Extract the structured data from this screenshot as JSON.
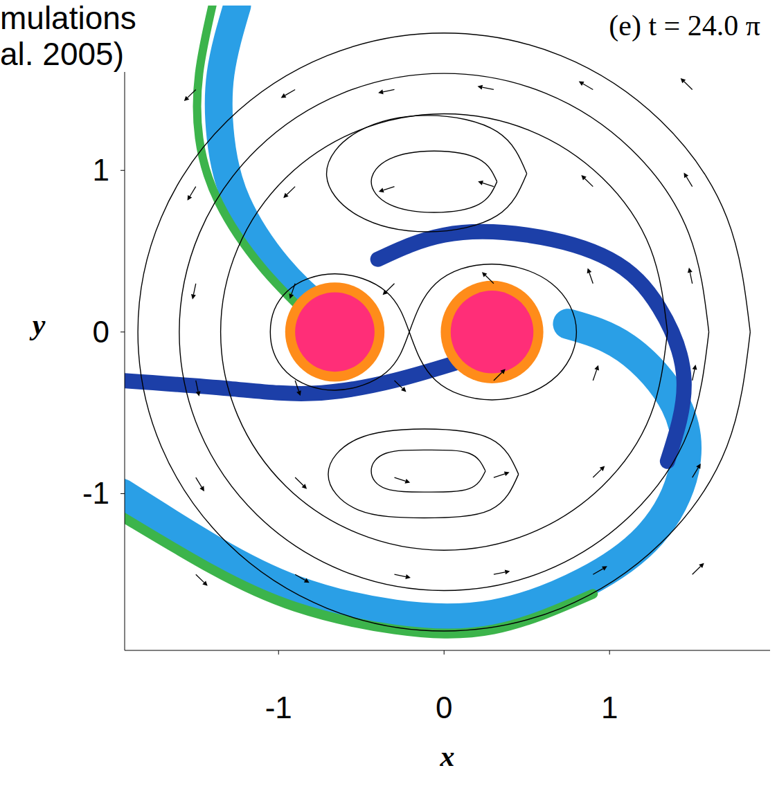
{
  "chart_data": {
    "type": "vector_field",
    "title": "(e) t = 24.0 π",
    "annotations": [
      "mulations",
      "al. 2005)"
    ],
    "x_label": "x",
    "y_label": "y",
    "xlim": [
      -1.93,
      1.97
    ],
    "ylim": [
      -1.97,
      2.02
    ],
    "xticks": [
      -1,
      0,
      1
    ],
    "yticks": [
      -1,
      0,
      1
    ],
    "grid": false,
    "density_features": [
      {
        "color": "#2a9fe6",
        "x": [
          0.75,
          1.1,
          1.4,
          1.45,
          1.25,
          0.85,
          0.3,
          -0.3,
          -0.9,
          -1.4,
          -1.95
        ],
        "y": [
          0.05,
          -0.1,
          -0.45,
          -0.85,
          -1.25,
          -1.55,
          -1.75,
          -1.75,
          -1.6,
          -1.35,
          -1.0
        ]
      },
      {
        "color": "#3cb44b",
        "x": [
          0.9,
          0.3,
          -0.3,
          -0.9,
          -1.4,
          -1.95
        ],
        "y": [
          -1.62,
          -1.84,
          -1.84,
          -1.7,
          -1.47,
          -1.14
        ]
      },
      {
        "color": "#2a9fe6",
        "x": [
          -0.75,
          -1.0,
          -1.25,
          -1.35,
          -1.35,
          -1.25
        ],
        "y": [
          0.15,
          0.4,
          0.8,
          1.2,
          1.6,
          2.02
        ]
      },
      {
        "color": "#3cb44b",
        "x": [
          -0.82,
          -1.1,
          -1.36,
          -1.48,
          -1.48,
          -1.4
        ],
        "y": [
          0.1,
          0.4,
          0.8,
          1.2,
          1.6,
          2.02
        ]
      },
      {
        "color": "#1c3fa8",
        "x": [
          -0.4,
          0.0,
          0.5,
          1.0,
          1.3,
          1.45,
          1.35
        ],
        "y": [
          0.45,
          0.6,
          0.6,
          0.45,
          0.15,
          -0.3,
          -0.8
        ]
      },
      {
        "color": "#1c3fa8",
        "x": [
          -1.95,
          -1.3,
          -0.8,
          -0.3,
          0.2
        ],
        "y": [
          -0.3,
          -0.35,
          -0.38,
          -0.3,
          -0.15
        ]
      }
    ],
    "stars": [
      {
        "x": -0.66,
        "y": 0.0,
        "r": 0.3,
        "color": "#ff8c1a"
      },
      {
        "x": 0.29,
        "y": 0.0,
        "r": 0.31,
        "color": "#ff8c1a"
      },
      {
        "x": -0.66,
        "y": 0.0,
        "r": 0.24,
        "color": "#ff2e78"
      },
      {
        "x": 0.29,
        "y": 0.0,
        "r": 0.25,
        "color": "#ff2e78"
      }
    ],
    "contours": [
      {
        "color": "#000000",
        "x": [
          -0.21,
          -0.35,
          -0.66,
          -0.95,
          -1.05,
          -0.95,
          -0.66,
          -0.35,
          -0.21,
          -0.05,
          0.29,
          0.65,
          0.8,
          0.65,
          0.29,
          -0.05,
          -0.21
        ],
        "y": [
          0,
          0.25,
          0.36,
          0.25,
          0,
          -0.25,
          -0.36,
          -0.25,
          0,
          0.3,
          0.42,
          0.3,
          0,
          -0.3,
          -0.42,
          -0.3,
          0
        ]
      },
      {
        "color": "#000000",
        "x": [
          0.32,
          0.21,
          -0.06,
          -0.33,
          -0.44,
          -0.33,
          -0.06,
          0.21,
          0.32
        ],
        "y": [
          0.93,
          1.07,
          1.12,
          1.07,
          0.93,
          0.79,
          0.74,
          0.79,
          0.93
        ]
      },
      {
        "color": "#000000",
        "x": [
          0.25,
          0.15,
          -0.1,
          -0.35,
          -0.44,
          -0.35,
          -0.1,
          0.15,
          0.25
        ],
        "y": [
          -0.86,
          -0.75,
          -0.73,
          -0.75,
          -0.86,
          -0.97,
          -0.99,
          -0.97,
          -0.86
        ]
      },
      {
        "color": "#000000",
        "x": [
          0.5,
          0.32,
          -0.1,
          -0.52,
          -0.71,
          -0.52,
          -0.1,
          0.32,
          0.5
        ],
        "y": [
          0.98,
          1.24,
          1.34,
          1.24,
          0.98,
          0.72,
          0.62,
          0.72,
          0.98
        ]
      },
      {
        "color": "#000000",
        "x": [
          0.45,
          0.28,
          -0.12,
          -0.52,
          -0.7,
          -0.52,
          -0.12,
          0.28,
          0.45
        ],
        "y": [
          -0.88,
          -0.66,
          -0.6,
          -0.66,
          -0.88,
          -1.1,
          -1.15,
          -1.1,
          -0.88
        ]
      },
      {
        "color": "#000000",
        "x": [
          1.35,
          1.247,
          0.955,
          0.517,
          0,
          -0.517,
          -0.955,
          -1.247,
          -1.35,
          -1.247,
          -0.955,
          -0.517,
          0,
          0.517,
          0.955,
          1.247,
          1.35
        ],
        "y": [
          0,
          0.517,
          0.955,
          1.247,
          1.35,
          1.247,
          0.955,
          0.517,
          0,
          -0.517,
          -0.955,
          -1.247,
          -1.35,
          -1.247,
          -0.955,
          -0.517,
          0
        ]
      },
      {
        "color": "#000000",
        "x": [
          1.6,
          1.478,
          1.131,
          0.612,
          0,
          -0.612,
          -1.131,
          -1.478,
          -1.6,
          -1.478,
          -1.131,
          -0.612,
          0,
          0.612,
          1.131,
          1.478,
          1.6
        ],
        "y": [
          0,
          0.612,
          1.131,
          1.478,
          1.6,
          1.478,
          1.131,
          0.612,
          0,
          -0.612,
          -1.131,
          -1.478,
          -1.6,
          -1.478,
          -1.131,
          -0.612,
          0
        ]
      },
      {
        "color": "#000000",
        "x": [
          1.85,
          1.709,
          1.308,
          0.708,
          0,
          -0.708,
          -1.308,
          -1.709,
          -1.85,
          -1.709,
          -1.308,
          -0.708,
          0,
          0.708,
          1.308,
          1.709,
          1.85
        ],
        "y": [
          0,
          0.708,
          1.308,
          1.709,
          1.85,
          1.709,
          1.308,
          0.708,
          0,
          -0.708,
          -1.308,
          -1.709,
          -1.85,
          -1.709,
          -1.308,
          -0.708,
          0
        ]
      }
    ],
    "vector_color": "#000000",
    "vectors": [
      {
        "x": -1.5,
        "y": 1.5,
        "u": -0.071,
        "v": -0.071
      },
      {
        "x": -0.9,
        "y": 1.5,
        "u": -0.086,
        "v": -0.051
      },
      {
        "x": -0.3,
        "y": 1.5,
        "u": -0.098,
        "v": -0.02
      },
      {
        "x": 0.3,
        "y": 1.5,
        "u": -0.098,
        "v": 0.02
      },
      {
        "x": 0.9,
        "y": 1.5,
        "u": -0.086,
        "v": 0.051
      },
      {
        "x": 1.5,
        "y": 1.5,
        "u": -0.071,
        "v": 0.071
      },
      {
        "x": -1.5,
        "y": 0.9,
        "u": -0.051,
        "v": -0.086
      },
      {
        "x": -0.9,
        "y": 0.9,
        "u": -0.071,
        "v": -0.071
      },
      {
        "x": -0.3,
        "y": 0.9,
        "u": -0.095,
        "v": -0.032
      },
      {
        "x": 0.3,
        "y": 0.9,
        "u": -0.095,
        "v": 0.032
      },
      {
        "x": 0.9,
        "y": 0.9,
        "u": -0.071,
        "v": 0.071
      },
      {
        "x": 1.5,
        "y": 0.9,
        "u": -0.051,
        "v": 0.086
      },
      {
        "x": -1.5,
        "y": 0.3,
        "u": -0.02,
        "v": -0.098
      },
      {
        "x": -0.9,
        "y": 0.3,
        "u": -0.032,
        "v": -0.095
      },
      {
        "x": -0.3,
        "y": 0.3,
        "u": -0.071,
        "v": -0.071
      },
      {
        "x": 0.3,
        "y": 0.3,
        "u": -0.071,
        "v": 0.071
      },
      {
        "x": 0.9,
        "y": 0.3,
        "u": -0.032,
        "v": 0.095
      },
      {
        "x": 1.5,
        "y": 0.3,
        "u": -0.02,
        "v": 0.098
      },
      {
        "x": -1.5,
        "y": -0.3,
        "u": 0.02,
        "v": -0.098
      },
      {
        "x": -0.9,
        "y": -0.3,
        "u": 0.032,
        "v": -0.095
      },
      {
        "x": -0.3,
        "y": -0.3,
        "u": 0.071,
        "v": -0.071
      },
      {
        "x": 0.3,
        "y": -0.3,
        "u": 0.071,
        "v": 0.071
      },
      {
        "x": 0.9,
        "y": -0.3,
        "u": 0.032,
        "v": 0.095
      },
      {
        "x": 1.5,
        "y": -0.3,
        "u": 0.02,
        "v": 0.098
      },
      {
        "x": -1.5,
        "y": -0.9,
        "u": 0.051,
        "v": -0.086
      },
      {
        "x": -0.9,
        "y": -0.9,
        "u": 0.071,
        "v": -0.071
      },
      {
        "x": -0.3,
        "y": -0.9,
        "u": 0.095,
        "v": -0.032
      },
      {
        "x": 0.3,
        "y": -0.9,
        "u": 0.095,
        "v": 0.032
      },
      {
        "x": 0.9,
        "y": -0.9,
        "u": 0.071,
        "v": 0.071
      },
      {
        "x": 1.5,
        "y": -0.9,
        "u": 0.051,
        "v": 0.086
      },
      {
        "x": -1.5,
        "y": -1.5,
        "u": 0.071,
        "v": -0.071
      },
      {
        "x": -0.9,
        "y": -1.5,
        "u": 0.086,
        "v": -0.051
      },
      {
        "x": -0.3,
        "y": -1.5,
        "u": 0.098,
        "v": -0.02
      },
      {
        "x": 0.3,
        "y": -1.5,
        "u": 0.098,
        "v": 0.02
      },
      {
        "x": 0.9,
        "y": -1.5,
        "u": 0.086,
        "v": 0.051
      },
      {
        "x": 1.5,
        "y": -1.5,
        "u": 0.071,
        "v": 0.071
      }
    ]
  }
}
